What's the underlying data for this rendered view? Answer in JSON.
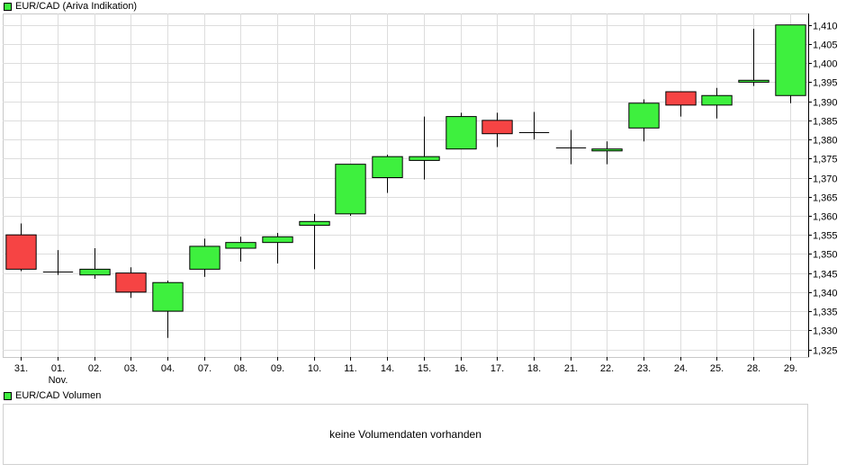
{
  "legend_price": {
    "label": "EUR/CAD (Ariva Indikation)",
    "color": "#3ef03e"
  },
  "legend_volume": {
    "label": "EUR/CAD Volumen",
    "color": "#3ef03e"
  },
  "volume_message": "keine Volumendaten vorhanden",
  "colors": {
    "up": "#3ef03e",
    "down": "#f64444",
    "grid": "#dddddd",
    "frame": "#c8c8c8"
  },
  "chart_data": {
    "type": "candlestick",
    "title": "",
    "xlabel": "",
    "ylabel": "",
    "ylim": [
      1.323,
      1.413
    ],
    "y_ticks": [
      "1,325",
      "1,330",
      "1,335",
      "1,340",
      "1,345",
      "1,350",
      "1,355",
      "1,360",
      "1,365",
      "1,370",
      "1,375",
      "1,380",
      "1,385",
      "1,390",
      "1,395",
      "1,400",
      "1,405",
      "1,410"
    ],
    "y_tick_values": [
      1.325,
      1.33,
      1.335,
      1.34,
      1.345,
      1.35,
      1.355,
      1.36,
      1.365,
      1.37,
      1.375,
      1.38,
      1.385,
      1.39,
      1.395,
      1.4,
      1.405,
      1.41
    ],
    "grid": true,
    "categories": [
      "31.",
      "01.",
      "02.",
      "03.",
      "04.",
      "07.",
      "08.",
      "09.",
      "10.",
      "11.",
      "14.",
      "15.",
      "16.",
      "17.",
      "18.",
      "21.",
      "22.",
      "23.",
      "24.",
      "25.",
      "28.",
      "29."
    ],
    "sub_labels": [
      "",
      "Nov.",
      "",
      "",
      "",
      "",
      "",
      "",
      "",
      "",
      "",
      "",
      "",
      "",
      "",
      "",
      "",
      "",
      "",
      "",
      "",
      ""
    ],
    "open": [
      1.355,
      1.3455,
      1.3445,
      1.345,
      1.335,
      1.346,
      1.3515,
      1.353,
      1.3575,
      1.3605,
      1.37,
      1.3745,
      1.3775,
      1.385,
      1.382,
      1.378,
      1.377,
      1.383,
      1.3925,
      1.389,
      1.395,
      1.3915
    ],
    "high": [
      1.358,
      1.351,
      1.3515,
      1.3465,
      1.343,
      1.354,
      1.3545,
      1.3555,
      1.3605,
      1.3735,
      1.376,
      1.386,
      1.387,
      1.387,
      1.3872,
      1.3825,
      1.3795,
      1.3905,
      1.3925,
      1.3935,
      1.409,
      1.41
    ],
    "low": [
      1.3455,
      1.3445,
      1.3435,
      1.3385,
      1.328,
      1.344,
      1.348,
      1.3475,
      1.346,
      1.36,
      1.366,
      1.3695,
      1.3775,
      1.378,
      1.38,
      1.3735,
      1.3735,
      1.3795,
      1.386,
      1.3855,
      1.394,
      1.3895
    ],
    "close": [
      1.346,
      1.3455,
      1.346,
      1.34,
      1.3425,
      1.352,
      1.353,
      1.3545,
      1.3585,
      1.3735,
      1.3755,
      1.3755,
      1.386,
      1.3815,
      1.382,
      1.378,
      1.3775,
      1.3895,
      1.389,
      1.3915,
      1.3955,
      1.41
    ]
  }
}
